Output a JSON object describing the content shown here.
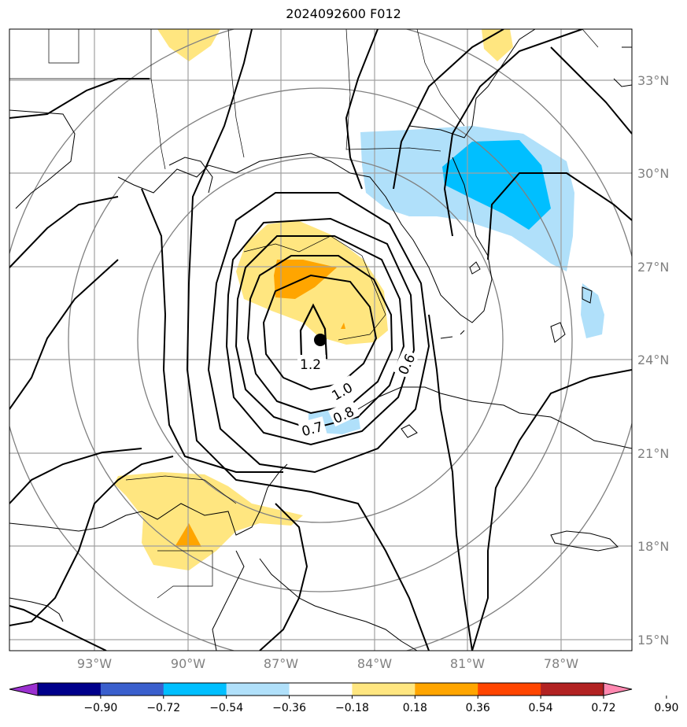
{
  "title": "2024092600 F012",
  "latitudes": [
    "33°N",
    "30°N",
    "27°N",
    "24°N",
    "21°N",
    "18°N",
    "15°N"
  ],
  "longitudes": [
    "93°W",
    "90°W",
    "87°W",
    "84°W",
    "81°W",
    "78°W"
  ],
  "contour_labels": [
    "1.2",
    "1.0",
    "0.8",
    "0.7",
    "0.6"
  ],
  "colorbar": {
    "ticks": [
      "−0.90",
      "−0.72",
      "−0.54",
      "−0.36",
      "−0.18",
      "0.18",
      "0.36",
      "0.54",
      "0.72",
      "0.90"
    ],
    "colors": [
      "#9b30d0",
      "#00008b",
      "#3a5fcd",
      "#00bfff",
      "#b0e0fa",
      "#ffffff",
      "#ffe680",
      "#ffa500",
      "#ff4500",
      "#b22222",
      "#ff88b0"
    ]
  },
  "fill_colors": {
    "light_blue": "#b0e0fa",
    "blue": "#00bfff",
    "yellow": "#ffe680",
    "orange": "#ffa500"
  }
}
